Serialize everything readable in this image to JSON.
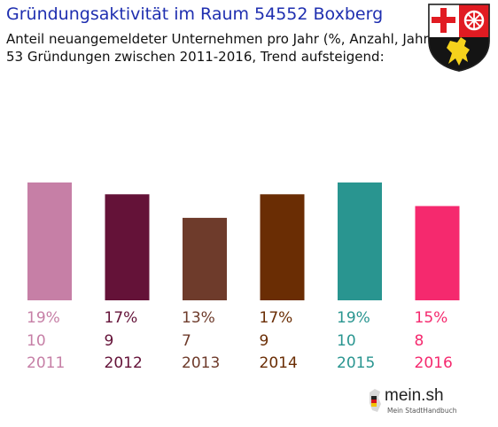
{
  "header": {
    "title": "Gründungsaktivität im Raum 54552 Boxberg",
    "subtitle_line1": "Anteil neuangemeldeter Unternehmen pro Jahr (%, Anzahl, Jahr)",
    "subtitle_line2": "53 Gründungen zwischen 2011-2016, Trend aufsteigend:"
  },
  "footer": {
    "logo_text": "mein.sh",
    "logo_tagline": "Mein StadtHandbuch"
  },
  "colors": {
    "title": "#1f2fb0",
    "bars": [
      "#c67fa6",
      "#641238",
      "#6e3b2b",
      "#6a2d04",
      "#299590",
      "#f5296e"
    ]
  },
  "chart_data": {
    "type": "bar",
    "categories": [
      "2011",
      "2012",
      "2013",
      "2014",
      "2015",
      "2016"
    ],
    "series": [
      {
        "percent_labels": [
          "19%",
          "17%",
          "13%",
          "17%",
          "19%",
          "15%"
        ],
        "values": [
          10,
          9,
          7,
          9,
          10,
          8
        ]
      }
    ],
    "title": "Gründungsaktivität im Raum 54552 Boxberg",
    "xlabel": "",
    "ylabel": "",
    "ylim": [
      0,
      10
    ],
    "grid": false,
    "legend": "none"
  }
}
